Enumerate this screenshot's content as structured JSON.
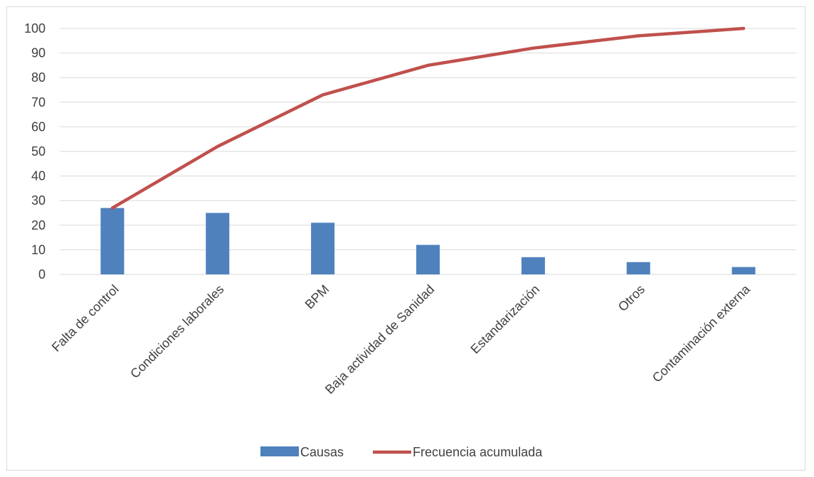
{
  "chart_data": {
    "type": "bar",
    "categories": [
      "Falta de control",
      "Condiciones laborales",
      "BPM",
      "Baja actividad de Sanidad",
      "Estandarización",
      "Otros",
      "Contaminación externa"
    ],
    "series": [
      {
        "name": "Causas",
        "type": "bar",
        "values": [
          27,
          25,
          21,
          12,
          7,
          5,
          3
        ],
        "color": "#4F81BD"
      },
      {
        "name": "Frecuencia acumulada",
        "type": "line",
        "values": [
          27,
          52,
          73,
          85,
          92,
          97,
          100
        ],
        "color": "#C0504D"
      }
    ],
    "ylim": [
      0,
      100
    ],
    "yticks": [
      0,
      10,
      20,
      30,
      40,
      50,
      60,
      70,
      80,
      90,
      100
    ],
    "grid": true,
    "legend": "bottom",
    "title": "",
    "xlabel": "",
    "ylabel": ""
  }
}
